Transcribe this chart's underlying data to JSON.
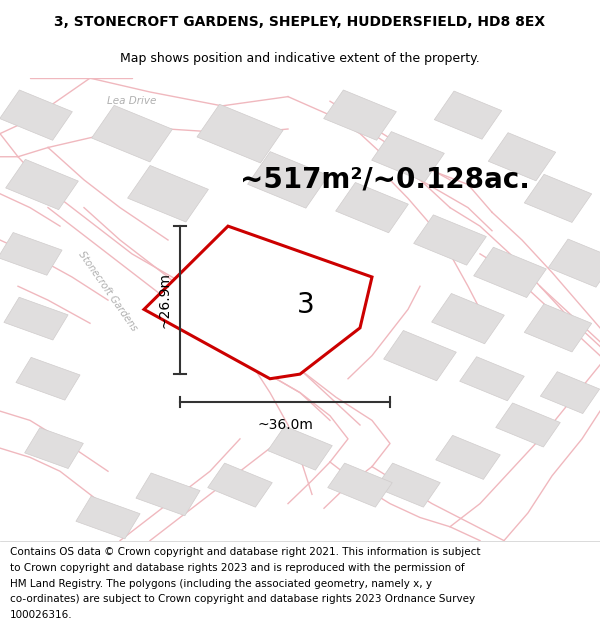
{
  "title_line1": "3, STONECROFT GARDENS, SHEPLEY, HUDDERSFIELD, HD8 8EX",
  "title_line2": "Map shows position and indicative extent of the property.",
  "area_text": "~517m²/~0.128ac.",
  "dim_width": "~36.0m",
  "dim_height": "~26.9m",
  "property_number": "3",
  "footer_lines": [
    "Contains OS data © Crown copyright and database right 2021. This information is subject",
    "to Crown copyright and database rights 2023 and is reproduced with the permission of",
    "HM Land Registry. The polygons (including the associated geometry, namely x, y",
    "co-ordinates) are subject to Crown copyright and database rights 2023 Ordnance Survey",
    "100026316."
  ],
  "map_bg_color": "#f7f5f5",
  "road_line_color": "#f0b8be",
  "building_color": "#e0dede",
  "building_edge_color": "#d0cccc",
  "plot_edge_color": "#cc0000",
  "plot_fill_color": "#ffffff",
  "dim_color": "#333333",
  "road_label_color": "#b0b0b0",
  "title_fontsize": 10,
  "subtitle_fontsize": 9,
  "area_fontsize": 20,
  "dim_fontsize": 10,
  "property_num_fontsize": 20,
  "footer_fontsize": 7.5,
  "road_lw": 1.0,
  "building_lw": 0.5
}
